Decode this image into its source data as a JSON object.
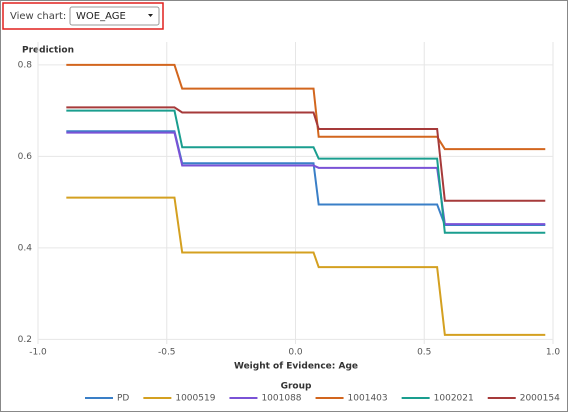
{
  "ui": {
    "view_chart_label": "View chart:",
    "dropdown_value": "WOE_AGE"
  },
  "chart_data": {
    "type": "line",
    "y_axis_title": "Prediction",
    "x_axis_title": "Weight of Evidence: Age",
    "legend_title": "Group",
    "x": [
      -0.89,
      -0.47,
      -0.44,
      0.07,
      0.09,
      0.55,
      0.58,
      0.97
    ],
    "series": [
      {
        "name": "PD",
        "color": "#3a7fc7",
        "values": [
          0.655,
          0.655,
          0.585,
          0.585,
          0.495,
          0.495,
          0.45,
          0.45
        ]
      },
      {
        "name": "1000519",
        "color": "#d4a020",
        "values": [
          0.51,
          0.51,
          0.39,
          0.39,
          0.358,
          0.358,
          0.21,
          0.21
        ]
      },
      {
        "name": "1001088",
        "color": "#7a52d6",
        "values": [
          0.652,
          0.652,
          0.58,
          0.58,
          0.575,
          0.575,
          0.452,
          0.452
        ]
      },
      {
        "name": "1001403",
        "color": "#d2661e",
        "values": [
          0.8,
          0.8,
          0.748,
          0.748,
          0.643,
          0.643,
          0.616,
          0.616
        ]
      },
      {
        "name": "1002021",
        "color": "#1a9e8f",
        "values": [
          0.7,
          0.7,
          0.62,
          0.62,
          0.595,
          0.595,
          0.433,
          0.433
        ]
      },
      {
        "name": "2000154",
        "color": "#a63a3a",
        "values": [
          0.707,
          0.707,
          0.696,
          0.696,
          0.66,
          0.66,
          0.503,
          0.503
        ]
      }
    ],
    "xlim": [
      -1,
      1
    ],
    "ylim": [
      0.19,
      0.85
    ],
    "xticks": [
      {
        "value": -1,
        "label": "-1.0"
      },
      {
        "value": -0.5,
        "label": "-0.5"
      },
      {
        "value": 0,
        "label": "0.0"
      },
      0.5,
      {
        "value": 1,
        "label": "1.0"
      }
    ],
    "yticks": [
      0.2,
      0.4,
      0.6,
      0.8
    ],
    "grid": true
  }
}
